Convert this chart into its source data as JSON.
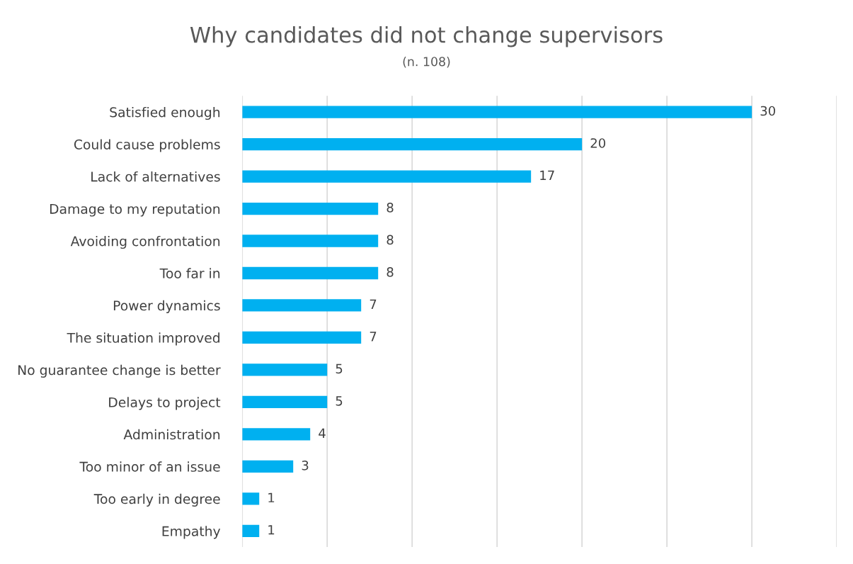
{
  "chart_data": {
    "type": "bar",
    "orientation": "horizontal",
    "title": "Why candidates did not change supervisors",
    "subtitle": "(n. 108)",
    "categories": [
      "Satisfied enough",
      "Could cause problems",
      "Lack of alternatives",
      "Damage to my reputation",
      "Avoiding confrontation",
      "Too far in",
      "Power dynamics",
      "The situation improved",
      "No guarantee change is better",
      "Delays to project",
      "Administration",
      "Too minor of an issue",
      "Too early in degree",
      "Empathy"
    ],
    "values": [
      30,
      20,
      17,
      8,
      8,
      8,
      7,
      7,
      5,
      5,
      4,
      3,
      1,
      1
    ],
    "color": "#00b0f0",
    "data_labels": true,
    "grid": "x",
    "legend": false,
    "xlim": [
      0,
      35
    ],
    "xticks": [
      {
        "value": 0,
        "label": null
      },
      {
        "value": 5,
        "label": null
      },
      {
        "value": 10,
        "label": null
      },
      {
        "value": 15,
        "label": null
      },
      {
        "value": 20,
        "label": null
      },
      {
        "value": 25,
        "label": null
      },
      {
        "value": 30,
        "label": null
      },
      {
        "value": 35,
        "label": null
      }
    ]
  }
}
